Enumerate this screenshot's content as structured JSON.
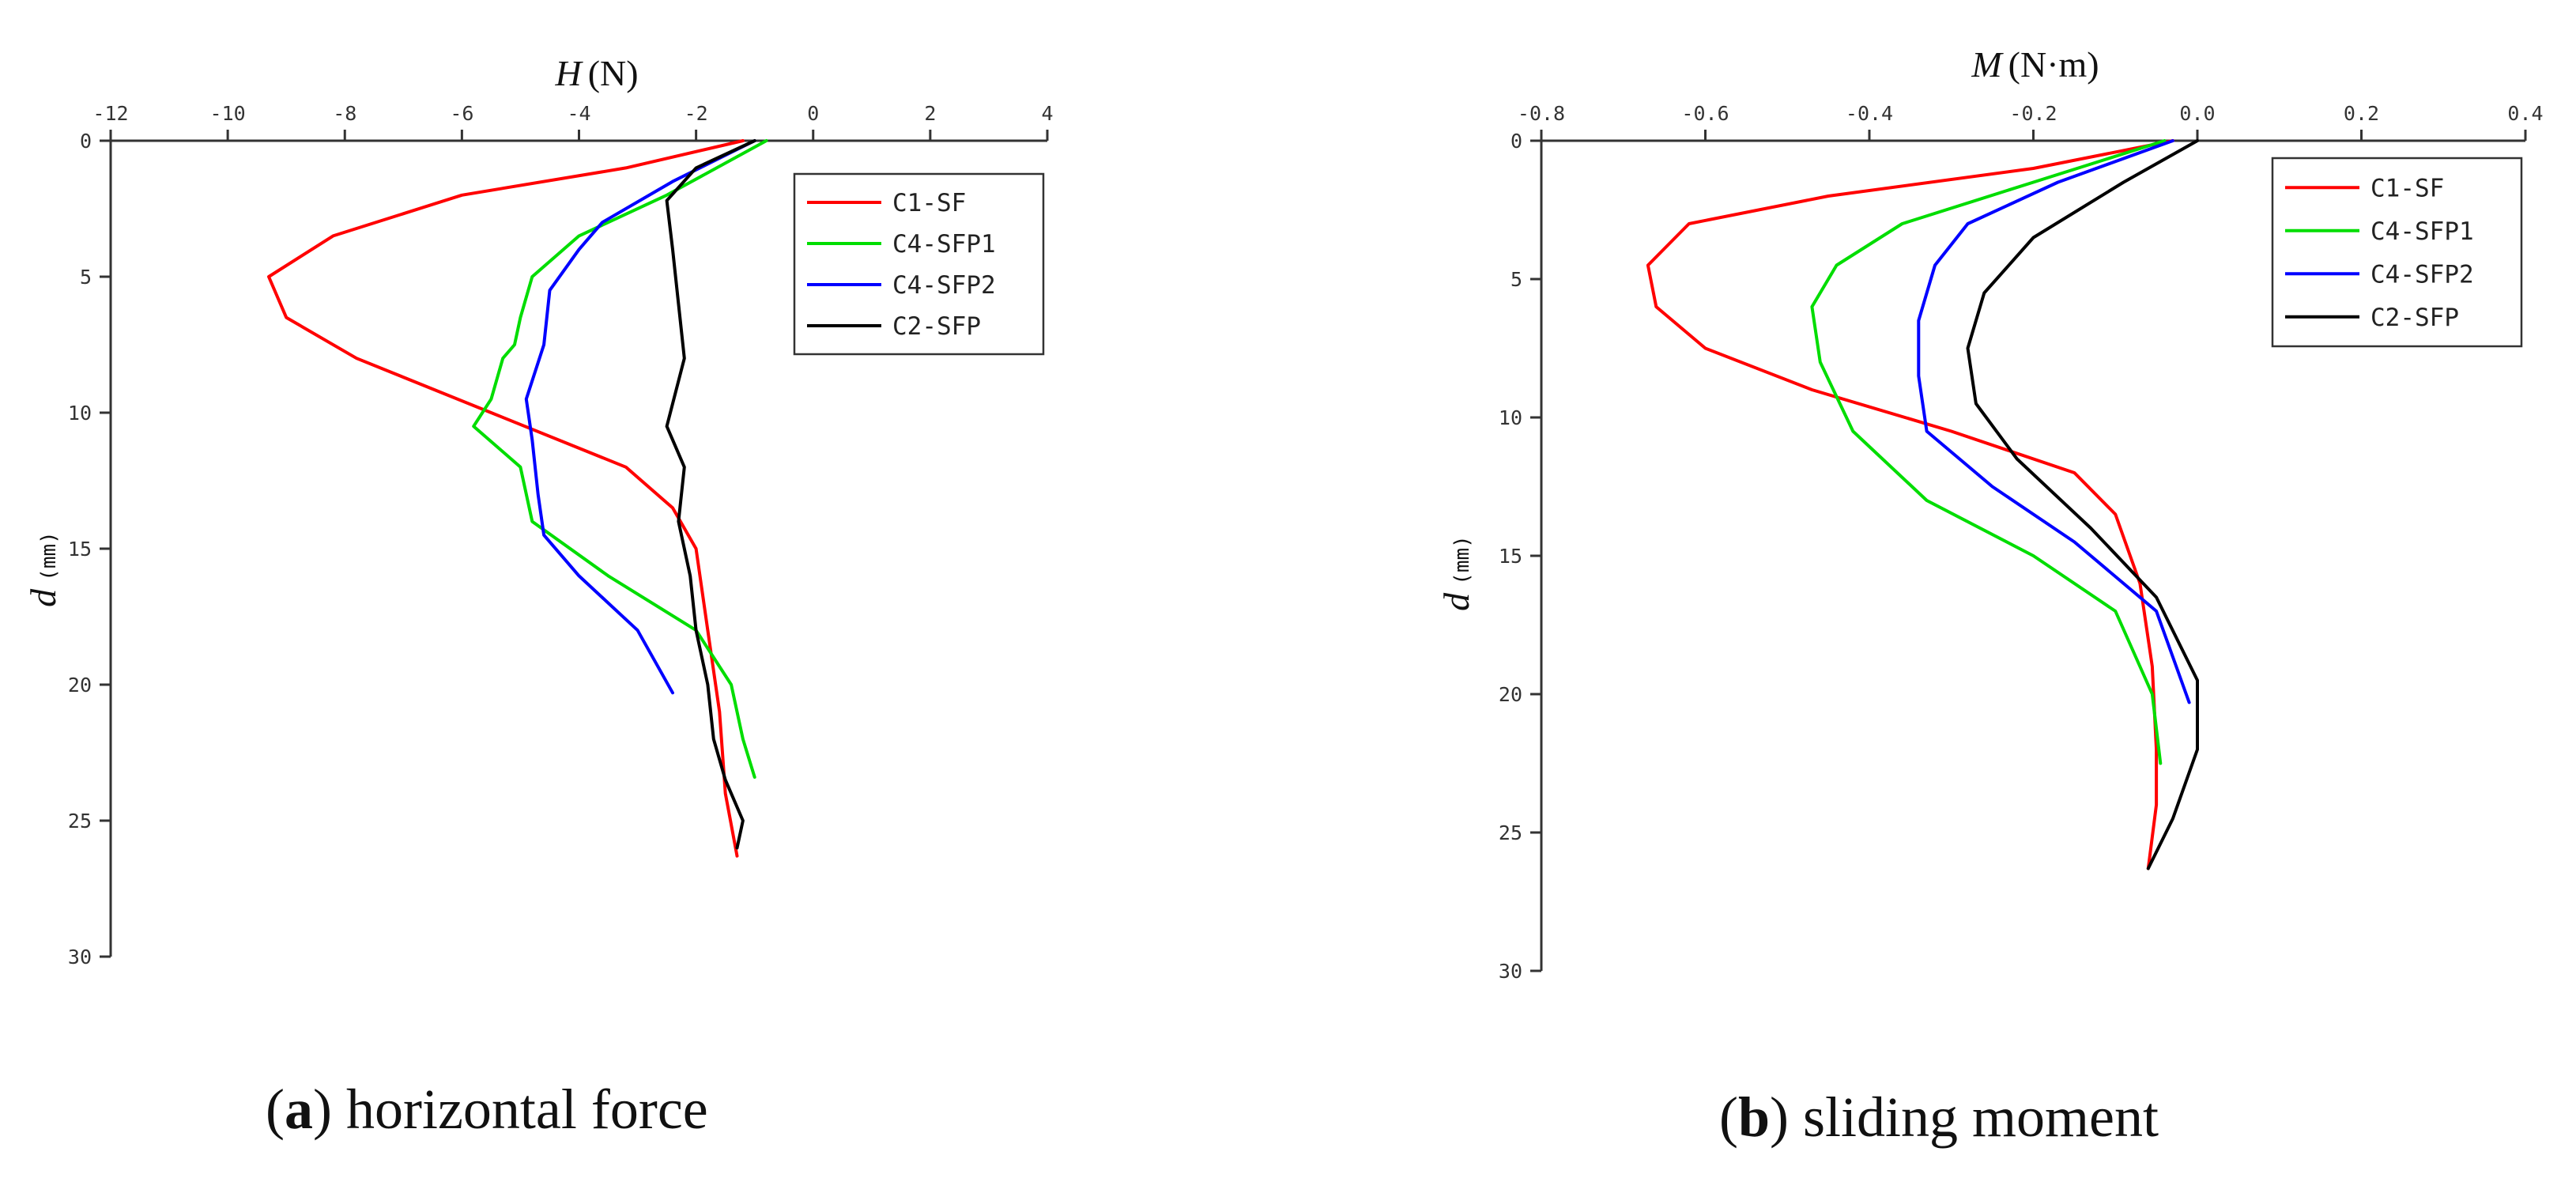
{
  "chart_data": [
    {
      "type": "line",
      "panel_letter": "a",
      "caption_text": "horizontal force",
      "x_label_var": "H",
      "x_label_unit": "(N)",
      "y_label_var": "d",
      "y_label_unit": "(mm)",
      "xlim": [
        -12,
        4
      ],
      "ylim": [
        0,
        30
      ],
      "y_inverted": true,
      "x_axis_position": "top",
      "x_ticks": [
        -12,
        -10,
        -8,
        -6,
        -4,
        -2,
        0,
        2,
        4
      ],
      "x_tick_labels": [
        "-12",
        "-10",
        "-8",
        "-6",
        "-4",
        "-2",
        "0",
        "2",
        "4"
      ],
      "y_ticks": [
        0,
        5,
        10,
        15,
        20,
        25,
        30
      ],
      "y_tick_labels": [
        "0",
        "5",
        "10",
        "15",
        "20",
        "25",
        "30"
      ],
      "grid": false,
      "legend_position": "top-right",
      "series": [
        {
          "name": "C1-SF",
          "color": "#ff0000",
          "x": [
            -1.2,
            -3.2,
            -6.0,
            -8.2,
            -9.3,
            -9.0,
            -7.8,
            -5.5,
            -3.2,
            -2.4,
            -2.0,
            -1.8,
            -1.6,
            -1.5,
            -1.3
          ],
          "y": [
            0,
            1,
            2,
            3.5,
            5,
            6.5,
            8,
            10,
            12,
            13.5,
            15,
            18,
            21,
            24,
            26.3
          ]
        },
        {
          "name": "C4-SFP1",
          "color": "#00dd00",
          "x": [
            -0.8,
            -2.5,
            -4.0,
            -4.8,
            -5.0,
            -5.1,
            -5.3,
            -5.5,
            -5.8,
            -5.0,
            -4.8,
            -3.5,
            -2.0,
            -1.4,
            -1.2,
            -1.0
          ],
          "y": [
            0,
            2,
            3.5,
            5,
            6.5,
            7.5,
            8,
            9.5,
            10.5,
            12,
            14,
            16,
            18,
            20,
            22,
            23.4
          ]
        },
        {
          "name": "C4-SFP2",
          "color": "#0000ff",
          "x": [
            -1.0,
            -2.4,
            -3.6,
            -4.0,
            -4.5,
            -4.6,
            -4.9,
            -4.8,
            -4.7,
            -4.6,
            -4.0,
            -3.0,
            -2.4
          ],
          "y": [
            0,
            1.5,
            3,
            4,
            5.5,
            7.5,
            9.5,
            11,
            13,
            14.5,
            16,
            18,
            20.3
          ]
        },
        {
          "name": "C2-SFP",
          "color": "#000000",
          "x": [
            -1.0,
            -2.0,
            -2.5,
            -2.4,
            -2.3,
            -2.2,
            -2.5,
            -2.2,
            -2.3,
            -2.1,
            -2.0,
            -1.8,
            -1.7,
            -1.5,
            -1.2,
            -1.3
          ],
          "y": [
            0,
            1,
            2.2,
            4,
            6,
            8,
            10.5,
            12,
            14,
            16,
            18,
            20,
            22,
            23.5,
            25,
            26
          ]
        }
      ]
    },
    {
      "type": "line",
      "panel_letter": "b",
      "caption_text": "sliding moment",
      "x_label_var": "M",
      "x_label_unit": "(N·m)",
      "y_label_var": "d",
      "y_label_unit": "(mm)",
      "xlim": [
        -0.8,
        0.4
      ],
      "ylim": [
        0,
        30
      ],
      "y_inverted": true,
      "x_axis_position": "top",
      "x_ticks": [
        -0.8,
        -0.6,
        -0.4,
        -0.2,
        0.0,
        0.2,
        0.4
      ],
      "x_tick_labels": [
        "-0.8",
        "-0.6",
        "-0.4",
        "-0.2",
        "0.0",
        "0.2",
        "0.4"
      ],
      "y_ticks": [
        0,
        5,
        10,
        15,
        20,
        25,
        30
      ],
      "y_tick_labels": [
        "0",
        "5",
        "10",
        "15",
        "20",
        "25",
        "30"
      ],
      "grid": false,
      "legend_position": "top-right",
      "series": [
        {
          "name": "C1-SF",
          "color": "#ff0000",
          "x": [
            -0.03,
            -0.2,
            -0.45,
            -0.62,
            -0.67,
            -0.66,
            -0.6,
            -0.47,
            -0.3,
            -0.15,
            -0.1,
            -0.07,
            -0.055,
            -0.05,
            -0.05,
            -0.06
          ],
          "y": [
            0,
            1,
            2,
            3,
            4.5,
            6,
            7.5,
            9,
            10.5,
            12,
            13.5,
            16,
            19,
            22,
            24,
            26.3
          ]
        },
        {
          "name": "C4-SFP1",
          "color": "#00dd00",
          "x": [
            -0.04,
            -0.2,
            -0.36,
            -0.44,
            -0.47,
            -0.46,
            -0.42,
            -0.33,
            -0.2,
            -0.1,
            -0.055,
            -0.045
          ],
          "y": [
            0,
            1.5,
            3,
            4.5,
            6,
            8,
            10.5,
            13,
            15,
            17,
            20,
            22.5
          ]
        },
        {
          "name": "C4-SFP2",
          "color": "#0000ff",
          "x": [
            -0.03,
            -0.17,
            -0.28,
            -0.32,
            -0.34,
            -0.34,
            -0.33,
            -0.25,
            -0.15,
            -0.05,
            -0.01
          ],
          "y": [
            0,
            1.5,
            3,
            4.5,
            6.5,
            8.5,
            10.5,
            12.5,
            14.5,
            17,
            20.3
          ]
        },
        {
          "name": "C2-SFP",
          "color": "#000000",
          "x": [
            0.0,
            -0.09,
            -0.2,
            -0.26,
            -0.28,
            -0.27,
            -0.22,
            -0.13,
            -0.05,
            0.0,
            0.0,
            -0.03,
            -0.06
          ],
          "y": [
            0,
            1.5,
            3.5,
            5.5,
            7.5,
            9.5,
            11.5,
            14,
            16.5,
            19.5,
            22,
            24.5,
            26.3
          ]
        }
      ]
    }
  ]
}
